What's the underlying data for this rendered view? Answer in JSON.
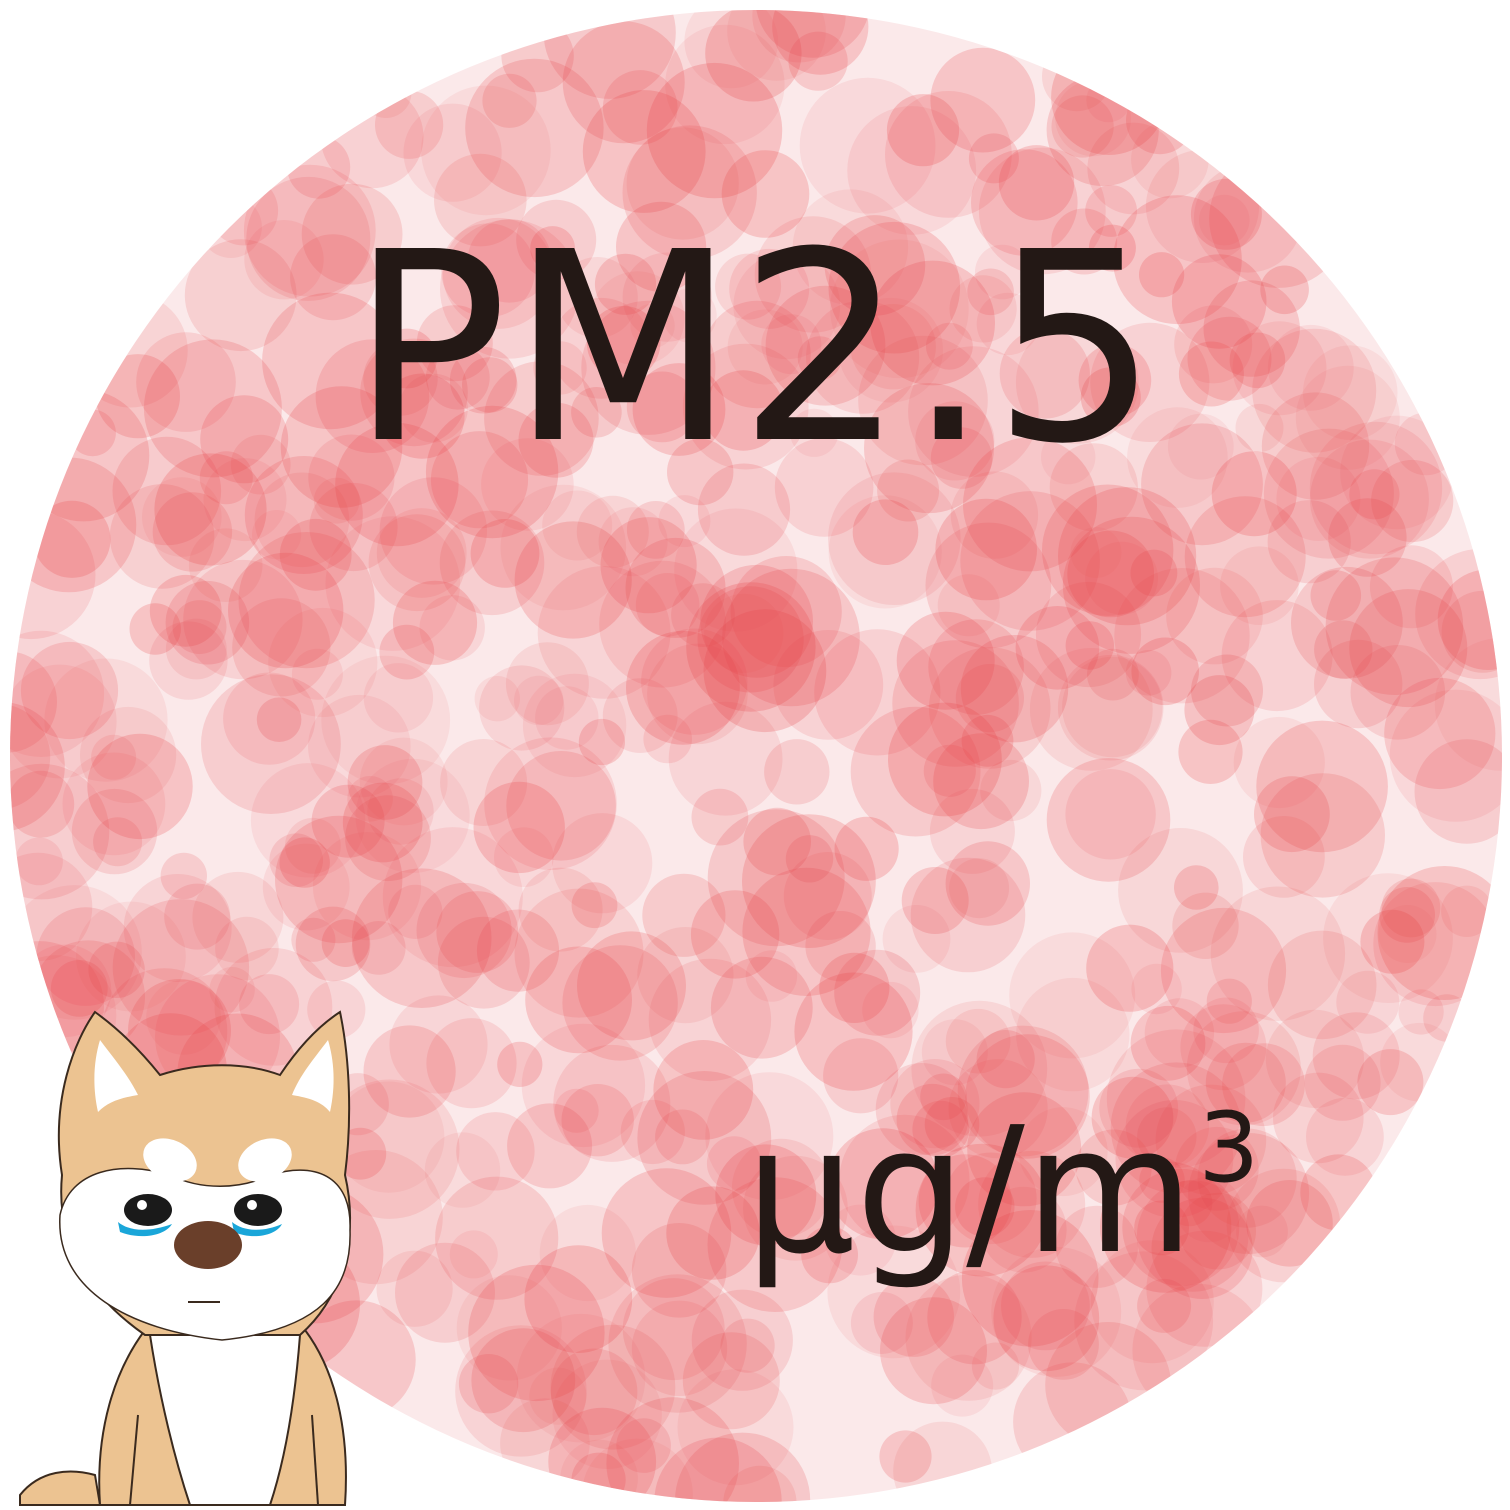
{
  "indicator": {
    "label": "PM2.5",
    "unit": "µg/m",
    "unit_exponent": "3"
  },
  "colors": {
    "bubble": "#e8454a",
    "text": "#231815",
    "dog_fur": "#ecc391",
    "dog_white": "#ffffff",
    "tear": "#1aa6d9"
  },
  "icons": {
    "badge": "pollution-bubble-circle",
    "mascot": "crying-shiba-dog-illustration"
  }
}
